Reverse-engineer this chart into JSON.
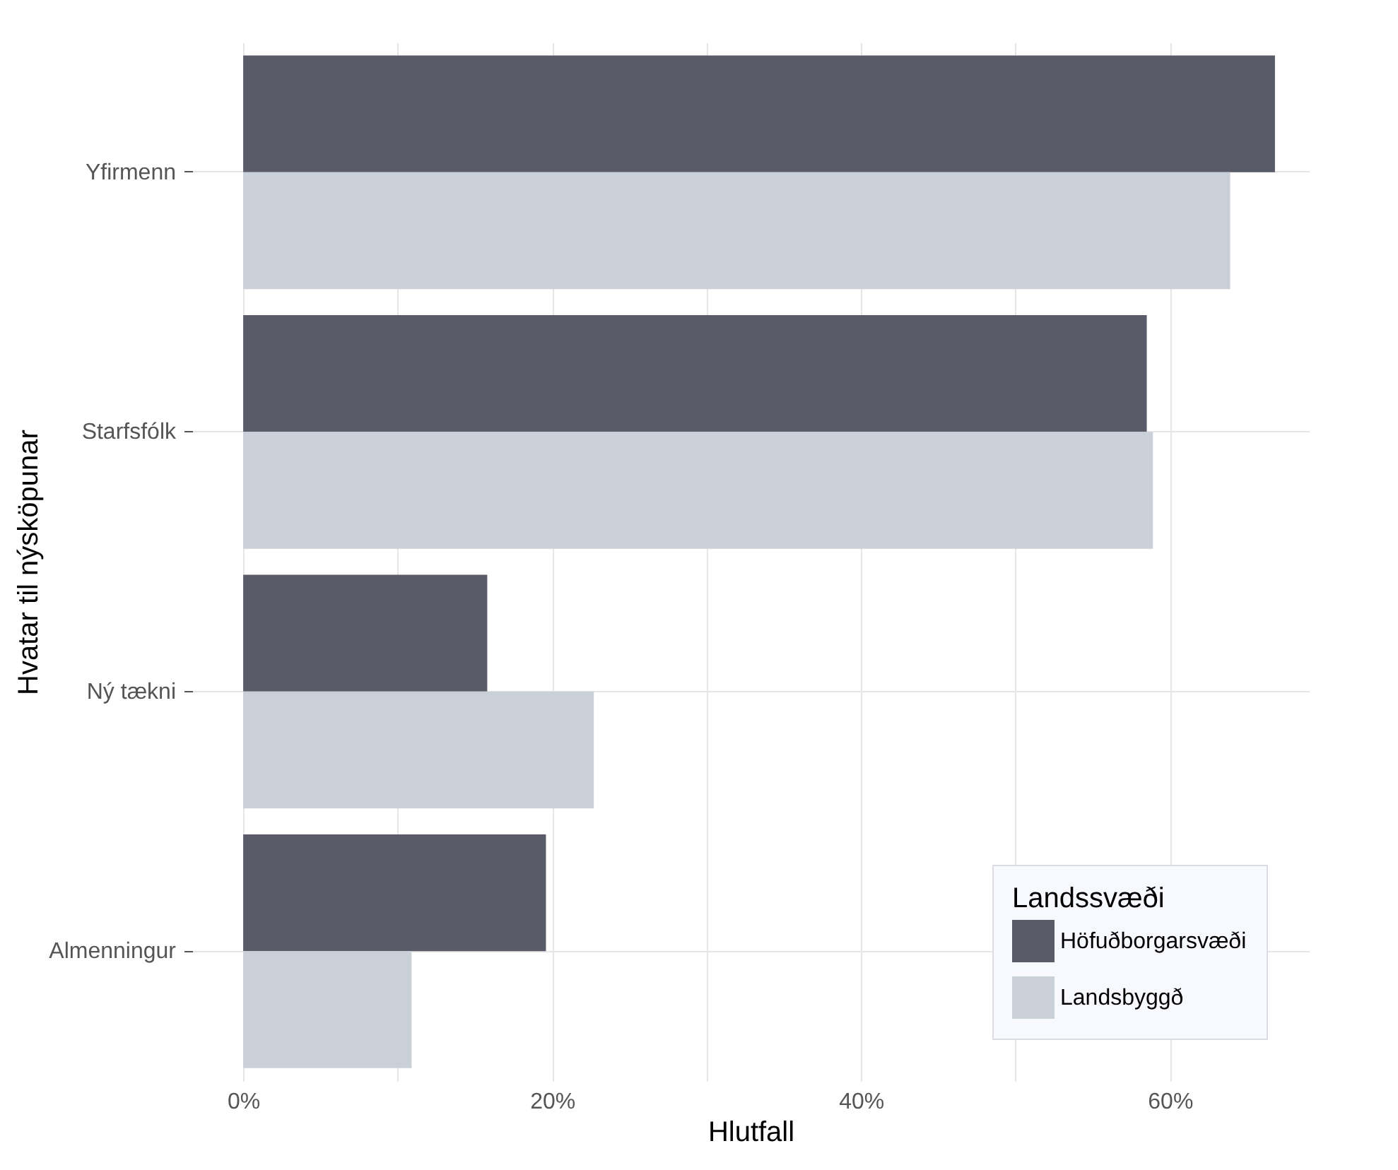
{
  "chart_data": {
    "type": "bar",
    "orientation": "horizontal",
    "xlabel": "Hlutfall",
    "ylabel": "Hvatar til nýsköpunar",
    "legend_title": "Landssvæði",
    "categories": [
      "Yfirmenn",
      "Starfsfólk",
      "Ný tækni",
      "Almenningur"
    ],
    "series": [
      {
        "name": "Höfuðborgarsvæði",
        "color": "#5a5b69",
        "values": [
          66.8,
          58.5,
          15.8,
          19.6
        ]
      },
      {
        "name": "Landsbyggð",
        "color": "#c9d0d8",
        "values": [
          63.9,
          58.9,
          22.7,
          10.9
        ]
      }
    ],
    "xlim": [
      -3.3,
      69
    ],
    "xticks": [
      {
        "value": 0,
        "label": "0%"
      },
      {
        "value": 10,
        "label": null
      },
      {
        "value": 20,
        "label": "20%"
      },
      {
        "value": 30,
        "label": null
      },
      {
        "value": 40,
        "label": "40%"
      },
      {
        "value": 50,
        "label": null
      },
      {
        "value": 60,
        "label": "60%"
      }
    ],
    "grid": true,
    "legend": "bottom right"
  }
}
